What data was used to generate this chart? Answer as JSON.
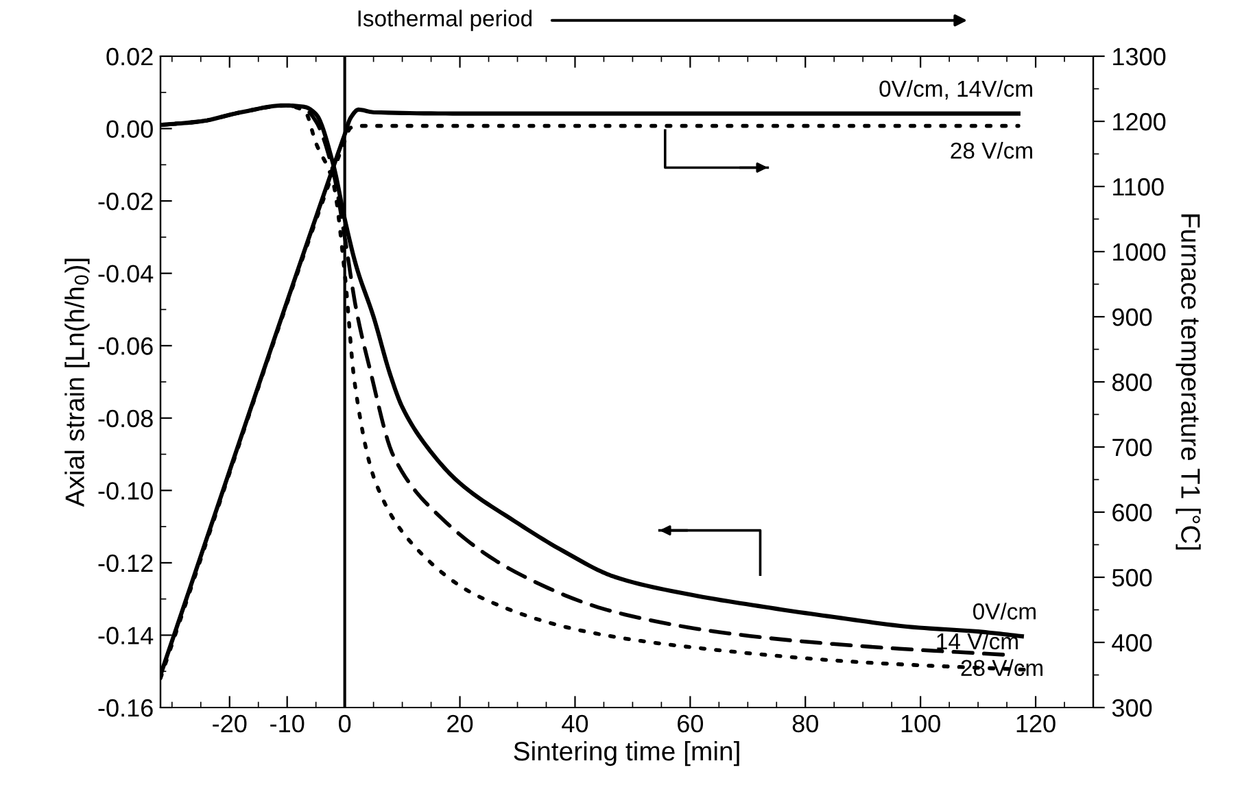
{
  "chart_data": {
    "type": "line",
    "xlabel": "Sintering time [min]",
    "ylabel": "Axial strain [Ln(h/h$_{0}$)]",
    "y2label": "Furnace temperature T1 [°C]",
    "xlim": [
      -32,
      130
    ],
    "xticks": [
      -20,
      -10,
      0,
      20,
      40,
      60,
      80,
      100,
      120
    ],
    "ylim": [
      -0.16,
      0.02
    ],
    "yticks": [
      {
        "value": -0.16,
        "label": "-0.16"
      },
      {
        "value": -0.14,
        "label": "-0.14"
      },
      {
        "value": -0.12,
        "label": "-0.12"
      },
      {
        "value": -0.1,
        "label": "-0.10"
      },
      {
        "value": -0.08,
        "label": "-0.08"
      },
      {
        "value": -0.06,
        "label": "-0.06"
      },
      {
        "value": -0.04,
        "label": "-0.04"
      },
      {
        "value": -0.02,
        "label": "-0.02"
      },
      {
        "value": 0,
        "label": "0.00"
      },
      {
        "value": 0.02,
        "label": "0.02"
      }
    ],
    "y2lim": [
      300,
      1300
    ],
    "y2ticks": [
      300,
      400,
      500,
      600,
      700,
      800,
      900,
      1000,
      1100,
      1200,
      1300
    ],
    "grid": false,
    "ref_lines": [
      {
        "axis": "x",
        "value": 0,
        "color": "#000000",
        "line_style": "solid"
      }
    ],
    "annotations": [
      "Isothermal period"
    ],
    "series": [
      {
        "name": "0V/cm",
        "color": "#000000",
        "line_style": "solid",
        "x": [
          -32,
          -25,
          -18,
          -10.5,
          -7,
          -5,
          -2,
          0,
          2,
          5,
          7.9,
          10,
          14.8,
          20,
          29.5,
          38,
          46.9,
          60,
          72.9,
          85,
          98.8,
          110,
          117.6
        ],
        "values": [
          0.001,
          0.002,
          0.0045,
          0.0064,
          0.006,
          0.004,
          -0.0099,
          -0.025,
          -0.038,
          -0.052,
          -0.068,
          -0.077,
          -0.089,
          -0.098,
          -0.1085,
          -0.1168,
          -0.1239,
          -0.1288,
          -0.1322,
          -0.135,
          -0.1378,
          -0.139,
          -0.1403
        ]
      },
      {
        "name": "14 V/cm",
        "color": "#000000",
        "line_style": "dashed",
        "x": [
          -32,
          -25,
          -18,
          -10.5,
          -7,
          -5,
          -2,
          0,
          2,
          4.3,
          8.5,
          16.5,
          29.6,
          46.9,
          68.6,
          90.3,
          114.5
        ],
        "values": [
          0.001,
          0.002,
          0.0045,
          0.0064,
          0.0055,
          0.002,
          -0.012,
          -0.03,
          -0.05,
          -0.066,
          -0.0906,
          -0.1072,
          -0.1225,
          -0.1336,
          -0.1399,
          -0.1431,
          -0.1454
        ]
      },
      {
        "name": "28 V/cm",
        "color": "#000000",
        "line_style": "dotted",
        "x": [
          -32,
          -25,
          -18,
          -10.5,
          -7,
          -5,
          -2,
          0,
          1.7,
          5.3,
          12.2,
          23.4,
          42.5,
          64,
          90,
          118.8
        ],
        "values": [
          0.001,
          0.002,
          0.0045,
          0.0063,
          0.005,
          -0.004,
          -0.015,
          -0.04,
          -0.07,
          -0.0975,
          -0.1156,
          -0.1294,
          -0.1392,
          -0.144,
          -0.1475,
          -0.1496
        ]
      },
      {
        "name": "0V/cm, 14V/cm",
        "color": "#000000",
        "line_style": "solid",
        "axis": "y2",
        "x": [
          -32,
          -2.1,
          0,
          1,
          2.4,
          5,
          20,
          117
        ],
        "values": [
          350,
          1127,
          1180,
          1205,
          1218,
          1214,
          1212,
          1212
        ]
      },
      {
        "name": "28 V/cm",
        "color": "#000000",
        "line_style": "dotted",
        "axis": "y2",
        "x": [
          -32,
          -2.1,
          0,
          1,
          2,
          117
        ],
        "values": [
          345,
          1120,
          1170,
          1190,
          1193,
          1193
        ]
      }
    ]
  }
}
